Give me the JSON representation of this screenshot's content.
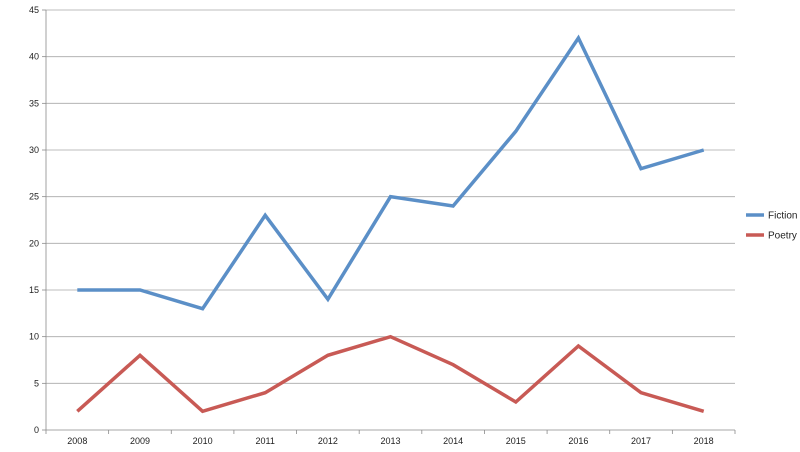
{
  "chart_data": {
    "type": "line",
    "title": "",
    "xlabel": "",
    "ylabel": "",
    "categories": [
      "2008",
      "2009",
      "2010",
      "2011",
      "2012",
      "2013",
      "2014",
      "2015",
      "2016",
      "2017",
      "2018"
    ],
    "ylim": [
      0,
      45
    ],
    "yticks": [
      0,
      5,
      10,
      15,
      20,
      25,
      30,
      35,
      40,
      45
    ],
    "grid": "horizontal",
    "legend_position": "right",
    "series": [
      {
        "name": "Fiction",
        "color": "#5b8fc7",
        "values": [
          15,
          15,
          13,
          23,
          14,
          25,
          24,
          32,
          42,
          28,
          30
        ]
      },
      {
        "name": "Poetry",
        "color": "#c85a55",
        "values": [
          2,
          8,
          2,
          4,
          8,
          10,
          7,
          3,
          9,
          4,
          2
        ]
      }
    ]
  }
}
